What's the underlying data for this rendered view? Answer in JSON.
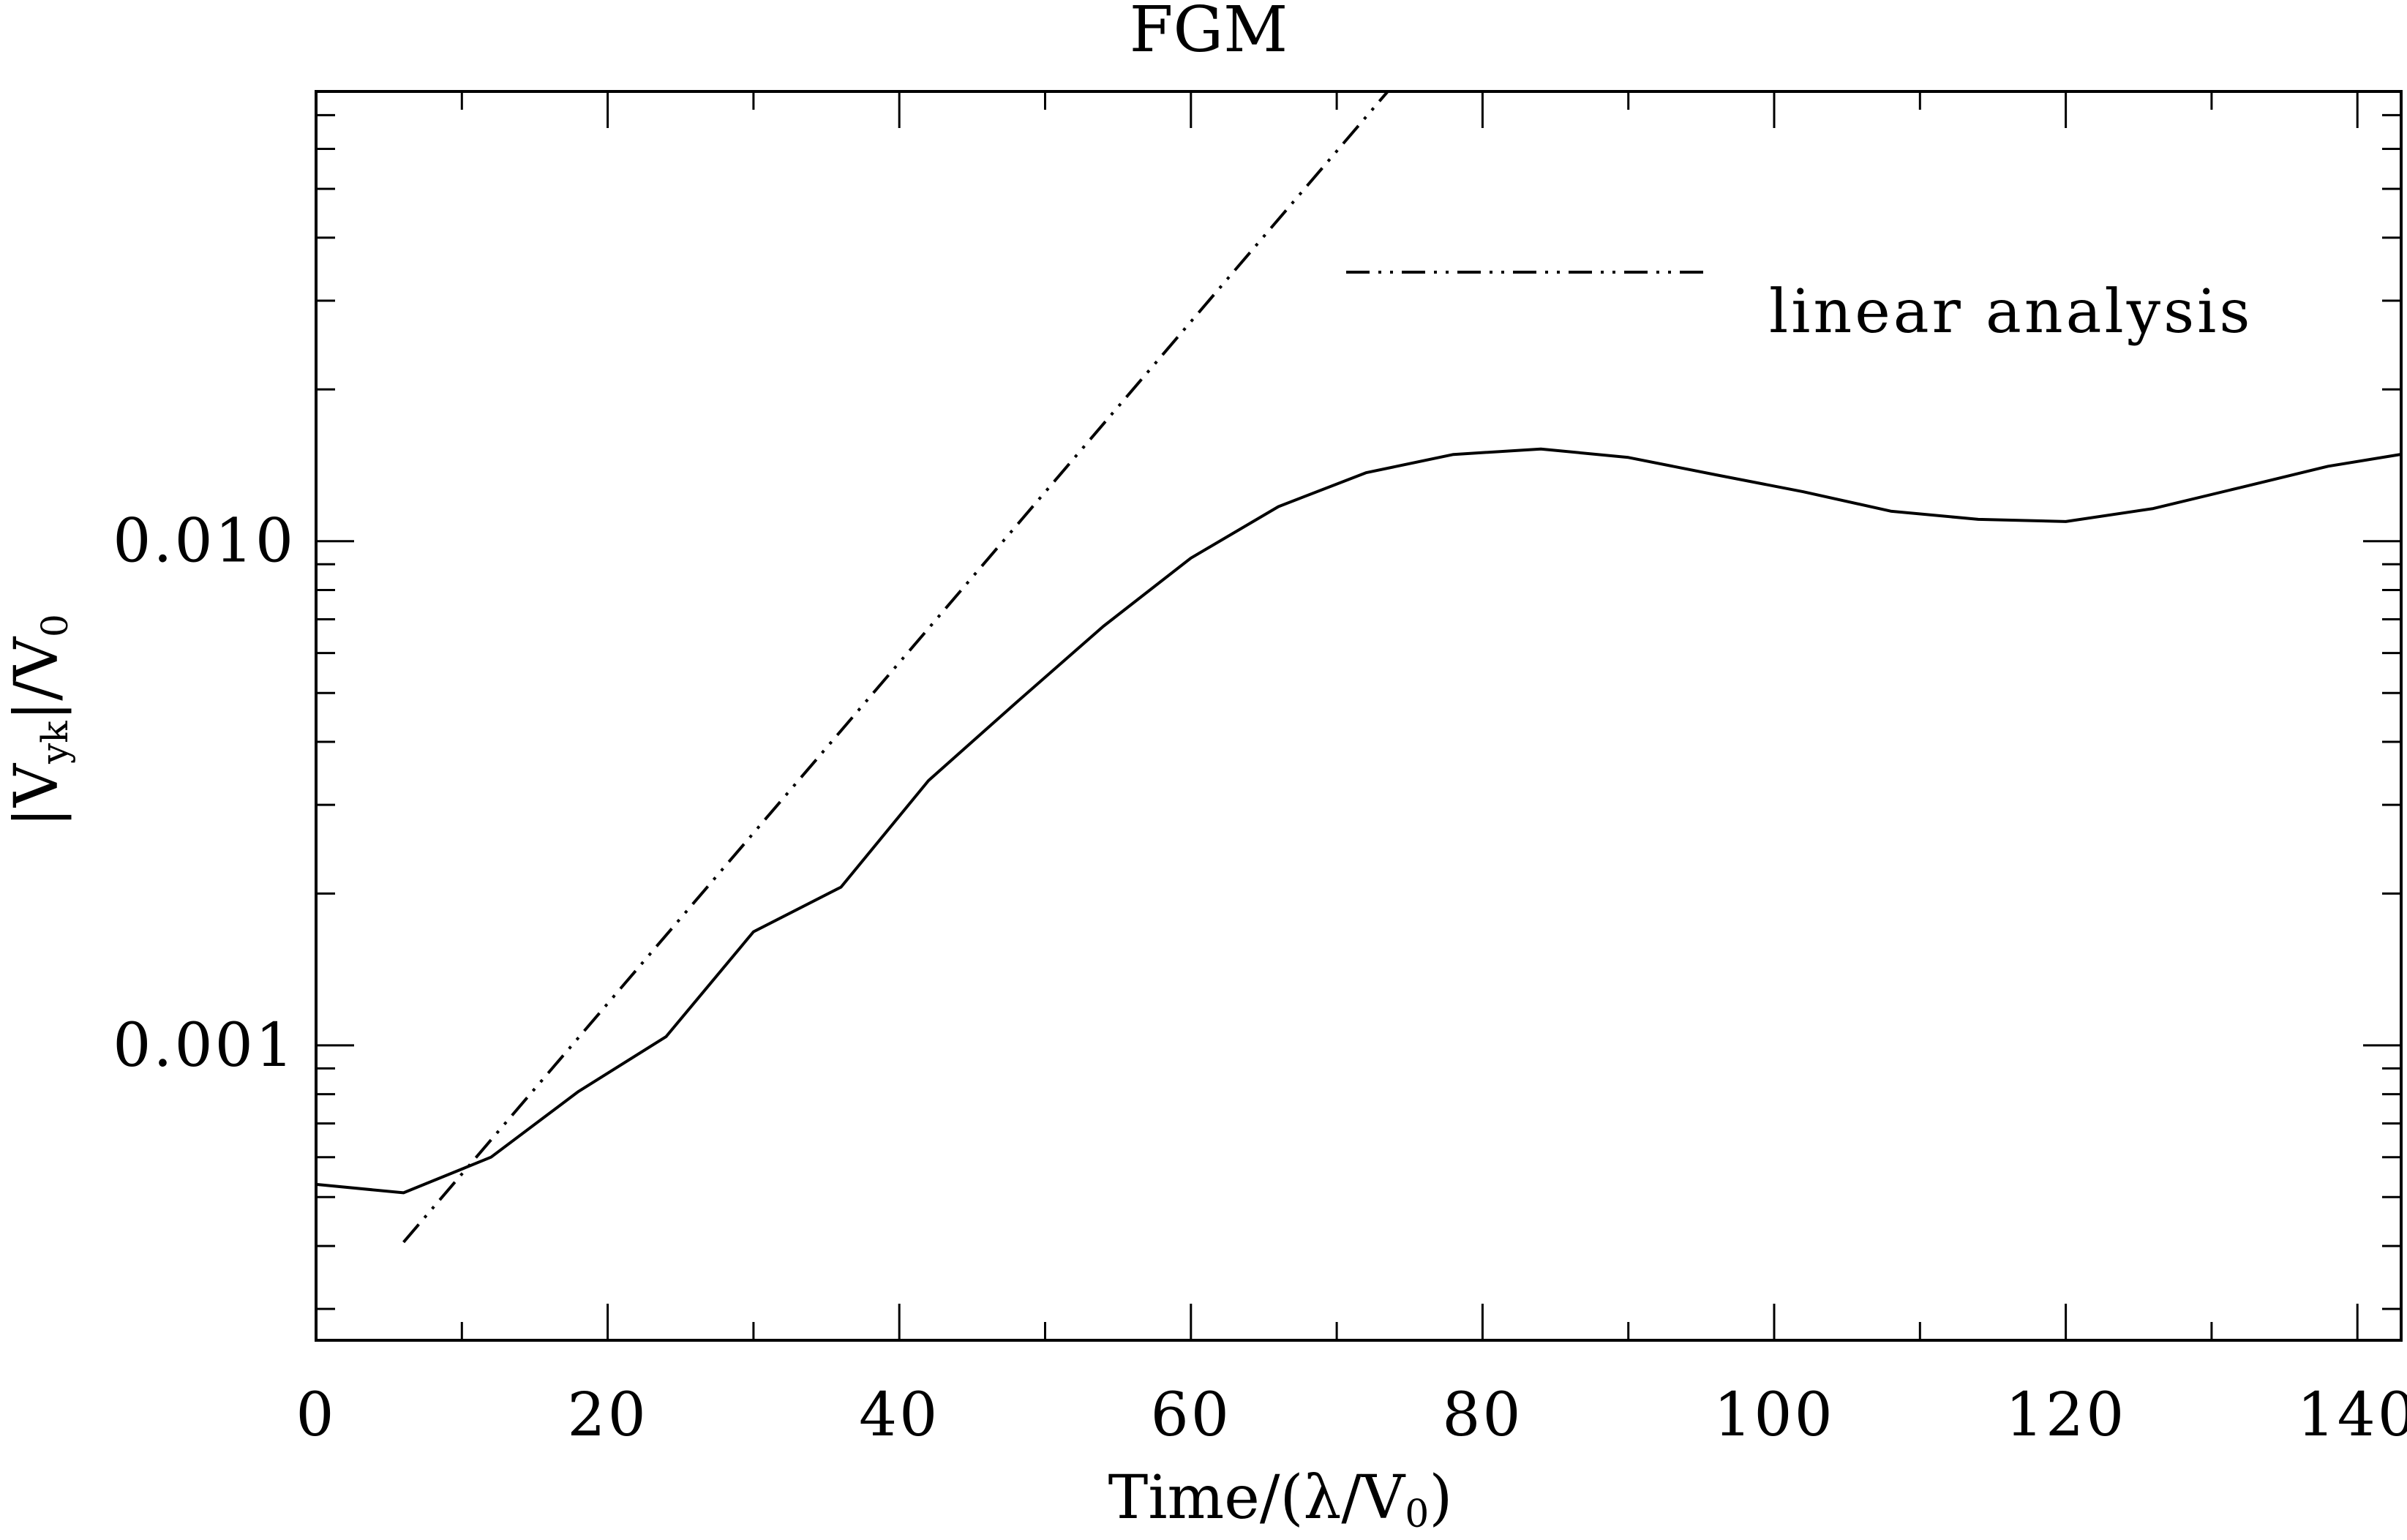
{
  "chart_data": {
    "type": "line",
    "title": "FGM",
    "xlabel": {
      "main": "Time/(λ/V",
      "sub": "0",
      "tail": ")"
    },
    "ylabel": {
      "pre": "|V",
      "sub": "yk",
      "mid": "|/V",
      "sub2": "0"
    },
    "xlim": [
      0,
      143
    ],
    "ylim": [
      0.00026,
      0.078
    ],
    "yscale": "log",
    "grid": false,
    "legend_placement": "top-right",
    "x_tick_labels": [
      "0",
      "20",
      "40",
      "60",
      "80",
      "100",
      "120",
      "140"
    ],
    "x_ticks": [
      0,
      20,
      40,
      60,
      80,
      100,
      120,
      140
    ],
    "y_tick_labels": [
      "0.001",
      "0.010"
    ],
    "y_ticks": [
      0.001,
      0.01
    ],
    "series": [
      {
        "style": "solid",
        "x": [
          0,
          6,
          12,
          18,
          24,
          30,
          36,
          42,
          48,
          54,
          60,
          66,
          72,
          78,
          84,
          90,
          96,
          102,
          108,
          114,
          120,
          126,
          132,
          138,
          143
        ],
        "y": [
          0.00053,
          0.00051,
          0.0006,
          0.00081,
          0.00104,
          0.00168,
          0.00206,
          0.00335,
          0.00478,
          0.00678,
          0.00926,
          0.01171,
          0.01367,
          0.01486,
          0.01524,
          0.01466,
          0.01354,
          0.01253,
          0.01147,
          0.01105,
          0.01094,
          0.01161,
          0.01278,
          0.01408,
          0.01487
        ]
      },
      {
        "name": "linear analysis",
        "style": "dash-dot-dot",
        "x": [
          6,
          73.5
        ],
        "y": [
          0.000407,
          0.078
        ]
      }
    ]
  }
}
